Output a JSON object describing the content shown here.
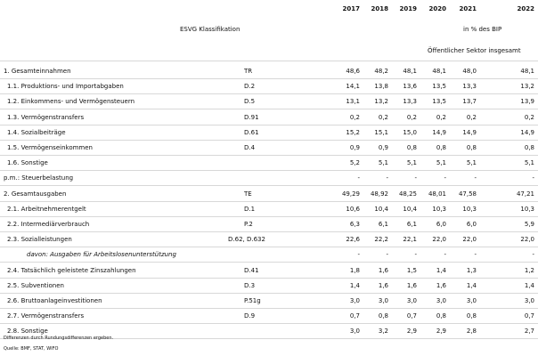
{
  "header": {
    "years": [
      "2017",
      "2018",
      "2019",
      "2020",
      "2021",
      "2022"
    ],
    "classification": "ESVG Klassifikation",
    "unit": "in % des BIP",
    "sector": "Öffentlicher Sektor insgesamt"
  },
  "rows": [
    {
      "label": "1. Gesamteinnahmen",
      "code": "TR",
      "values": [
        "48,6",
        "48,2",
        "48,1",
        "48,1",
        "48,0",
        "48,1"
      ]
    },
    {
      "label": "1.1. Produktions- und Importabgaben",
      "code": "D.2",
      "values": [
        "14,1",
        "13,8",
        "13,6",
        "13,5",
        "13,3",
        "13,2"
      ]
    },
    {
      "label": "1.2. Einkommens- und Vermögensteuern",
      "code": "D.5",
      "values": [
        "13,1",
        "13,2",
        "13,3",
        "13,5",
        "13,7",
        "13,9"
      ]
    },
    {
      "label": "1.3. Vermögenstransfers",
      "code": "D.91",
      "values": [
        "0,2",
        "0,2",
        "0,2",
        "0,2",
        "0,2",
        "0,2"
      ]
    },
    {
      "label": "1.4. Sozialbeiträge",
      "code": "D.61",
      "values": [
        "15,2",
        "15,1",
        "15,0",
        "14,9",
        "14,9",
        "14,9"
      ]
    },
    {
      "label": "1.5. Vermögenseinkommen",
      "code": "D.4",
      "values": [
        "0,9",
        "0,9",
        "0,8",
        "0,8",
        "0,8",
        "0,8"
      ]
    },
    {
      "label": "1.6. Sonstige",
      "values": [
        "5,2",
        "5,1",
        "5,1",
        "5,1",
        "5,1",
        "5,1"
      ]
    },
    {
      "label": "p.m.: Steuerbelastung",
      "values": [
        "-",
        "-",
        "-",
        "-",
        "-",
        "-"
      ]
    },
    {
      "label": "2. Gesamtausgaben",
      "code": "TE",
      "values": [
        "49,29",
        "48,92",
        "48,25",
        "48,01",
        "47,58",
        "47,21"
      ]
    },
    {
      "label": "2.1. Arbeitnehmerentgelt",
      "code": "D.1",
      "values": [
        "10,6",
        "10,4",
        "10,4",
        "10,3",
        "10,3",
        "10,3"
      ]
    },
    {
      "label": "2.2. Intermediärverbrauch",
      "code": "P.2",
      "values": [
        "6,3",
        "6,1",
        "6,1",
        "6,0",
        "6,0",
        "5,9"
      ]
    },
    {
      "label": "2.3. Sozialleistungen",
      "code": "D.62, D.632",
      "values": [
        "22,6",
        "22,2",
        "22,1",
        "22,0",
        "22,0",
        "22,0"
      ]
    },
    {
      "label": "davon: Ausgaben für Arbeitslosenunterstützung",
      "values": [
        "-",
        "-",
        "-",
        "-",
        "-",
        "-"
      ]
    },
    {
      "label": "2.4. Tatsächlich geleistete Zinszahlungen",
      "code": "D.41",
      "values": [
        "1,8",
        "1,6",
        "1,5",
        "1,4",
        "1,3",
        "1,2"
      ]
    },
    {
      "label": "2.5. Subventionen",
      "code": "D.3",
      "values": [
        "1,4",
        "1,6",
        "1,6",
        "1,6",
        "1,4",
        "1,4"
      ]
    },
    {
      "label": "2.6. Bruttoanlageinvestitionen",
      "code": "P.51g",
      "values": [
        "3,0",
        "3,0",
        "3,0",
        "3,0",
        "3,0",
        "3,0"
      ]
    },
    {
      "label": "2.7. Vermögenstransfers",
      "code": "D.9",
      "values": [
        "0,7",
        "0,8",
        "0,7",
        "0,8",
        "0,8",
        "0,7"
      ]
    },
    {
      "label": "2.8. Sonstige",
      "values": [
        "3,0",
        "3,2",
        "2,9",
        "2,9",
        "2,8",
        "2,7"
      ]
    }
  ],
  "notes": [
    "Differenzen durch Rundungsdifferenzen ergeben.",
    "Quelle: BMF, STAT, WIFO"
  ]
}
